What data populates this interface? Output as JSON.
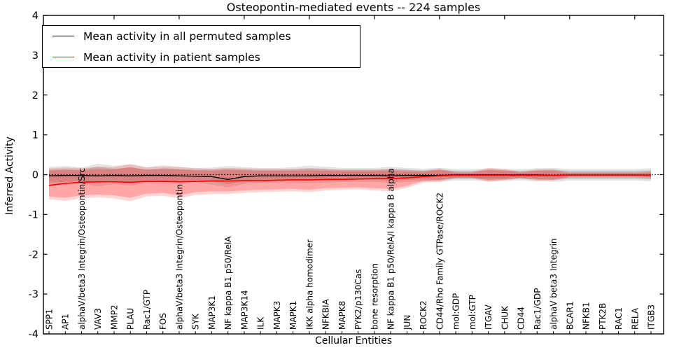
{
  "legend": {
    "entries": [
      {
        "label": "Mean activity in all permuted samples",
        "color": "#000000"
      },
      {
        "label": "Mean activity in patient samples",
        "color": "#ff0000"
      }
    ]
  },
  "chart_data": {
    "type": "line",
    "title": "Osteopontin-mediated events -- 224 samples",
    "xlabel": "Cellular Entities",
    "ylabel": "Inferred Activity",
    "ylim": [
      -4,
      4
    ],
    "yticks": [
      -4,
      -3,
      -2,
      -1,
      0,
      1,
      2,
      3,
      4
    ],
    "grid": false,
    "legend_position": "upper left",
    "zero_line": {
      "y": 0,
      "style": "dotted",
      "color": "#000000"
    },
    "categories": [
      "SPP1",
      "AP1",
      "alphaV/beta3 Integrin/Osteopontin/Src",
      "VAV3",
      "MMP2",
      "PLAU",
      "Rac1/GTP",
      "FOS",
      "alphaV/beta3 Integrin/Osteopontin",
      "SYK",
      "MAP3K1",
      "NF kappa B1 p50/RelA",
      "MAP3K14",
      "ILK",
      "MAPK3",
      "MAPK1",
      "IKK alpha homodimer",
      "NFKBIA",
      "MAPK8",
      "PYK2/p130Cas",
      "bone resorption",
      "NF kappa B1 p50/RelA/I kappa B alpha",
      "JUN",
      "ROCK2",
      "CD44/Rho Family GTPase/ROCK2",
      "mol:GDP",
      "mol:GTP",
      "ITGAV",
      "CHUK",
      "CD44",
      "Rac1/GDP",
      "alphaV beta3 Integrin",
      "BCAR1",
      "NFKB1",
      "PTK2B",
      "RAC1",
      "RELA",
      "ITGB3"
    ],
    "series": [
      {
        "name": "Mean activity in all permuted samples",
        "color": "#000000",
        "width": 1.4,
        "values": [
          -0.03,
          -0.02,
          -0.02,
          -0.03,
          -0.02,
          -0.03,
          -0.02,
          -0.02,
          -0.03,
          -0.04,
          -0.05,
          -0.12,
          -0.05,
          -0.03,
          -0.03,
          -0.03,
          -0.03,
          -0.02,
          -0.02,
          -0.02,
          -0.02,
          -0.03,
          -0.02,
          -0.02,
          -0.02,
          -0.01,
          -0.01,
          -0.01,
          -0.01,
          -0.01,
          -0.01,
          -0.02,
          -0.01,
          -0.01,
          -0.01,
          -0.01,
          -0.01,
          -0.01
        ]
      },
      {
        "name": "Mean activity in patient samples",
        "color": "#ff0000",
        "width": 1.6,
        "values": [
          -0.27,
          -0.22,
          -0.19,
          -0.18,
          -0.18,
          -0.19,
          -0.17,
          -0.17,
          -0.18,
          -0.17,
          -0.16,
          -0.16,
          -0.15,
          -0.15,
          -0.14,
          -0.13,
          -0.13,
          -0.12,
          -0.12,
          -0.11,
          -0.1,
          -0.1,
          -0.08,
          -0.05,
          -0.03,
          -0.02,
          -0.02,
          -0.02,
          -0.02,
          -0.02,
          -0.02,
          -0.02,
          -0.01,
          -0.01,
          -0.01,
          -0.01,
          -0.01,
          -0.01
        ]
      }
    ],
    "bands": [
      {
        "name": "permuted-outer",
        "color": "#000000",
        "opacity": 0.1,
        "upper": [
          0.2,
          0.22,
          0.18,
          0.28,
          0.22,
          0.27,
          0.19,
          0.24,
          0.2,
          0.17,
          0.18,
          0.22,
          0.19,
          0.17,
          0.17,
          0.19,
          0.23,
          0.2,
          0.17,
          0.17,
          0.17,
          0.2,
          0.17,
          0.15,
          0.17,
          0.14,
          0.14,
          0.16,
          0.14,
          0.14,
          0.16,
          0.17,
          0.14,
          0.14,
          0.14,
          0.14,
          0.14,
          0.16
        ],
        "lower": [
          -0.3,
          -0.26,
          -0.23,
          -0.3,
          -0.23,
          -0.28,
          -0.21,
          -0.23,
          -0.23,
          -0.2,
          -0.25,
          -0.32,
          -0.23,
          -0.2,
          -0.2,
          -0.2,
          -0.21,
          -0.2,
          -0.18,
          -0.18,
          -0.18,
          -0.21,
          -0.18,
          -0.17,
          -0.18,
          -0.15,
          -0.15,
          -0.17,
          -0.15,
          -0.15,
          -0.17,
          -0.18,
          -0.15,
          -0.15,
          -0.15,
          -0.15,
          -0.15,
          -0.17
        ]
      },
      {
        "name": "permuted-inner",
        "color": "#000000",
        "opacity": 0.13,
        "upper": [
          0.13,
          0.14,
          0.12,
          0.2,
          0.15,
          0.18,
          0.13,
          0.16,
          0.14,
          0.12,
          0.13,
          0.15,
          0.13,
          0.12,
          0.12,
          0.13,
          0.16,
          0.14,
          0.12,
          0.12,
          0.12,
          0.14,
          0.12,
          0.11,
          0.12,
          0.1,
          0.1,
          0.11,
          0.1,
          0.1,
          0.11,
          0.12,
          0.1,
          0.1,
          0.1,
          0.1,
          0.1,
          0.11
        ],
        "lower": [
          -0.2,
          -0.18,
          -0.16,
          -0.22,
          -0.16,
          -0.2,
          -0.15,
          -0.16,
          -0.16,
          -0.14,
          -0.18,
          -0.24,
          -0.16,
          -0.14,
          -0.14,
          -0.14,
          -0.15,
          -0.14,
          -0.13,
          -0.13,
          -0.13,
          -0.15,
          -0.13,
          -0.12,
          -0.13,
          -0.11,
          -0.11,
          -0.12,
          -0.11,
          -0.11,
          -0.12,
          -0.13,
          -0.11,
          -0.11,
          -0.11,
          -0.11,
          -0.11,
          -0.12
        ]
      },
      {
        "name": "patient-outer",
        "color": "#ff0000",
        "opacity": 0.16,
        "upper": [
          0.16,
          0.18,
          0.16,
          0.2,
          0.19,
          0.26,
          0.18,
          0.2,
          0.19,
          0.16,
          0.15,
          0.17,
          0.16,
          0.15,
          0.15,
          0.15,
          0.16,
          0.15,
          0.13,
          0.13,
          0.13,
          0.15,
          0.12,
          0.1,
          0.16,
          0.07,
          0.07,
          0.17,
          0.15,
          0.07,
          0.14,
          0.14,
          0.06,
          0.06,
          0.06,
          0.06,
          0.06,
          0.09
        ],
        "lower": [
          -0.62,
          -0.66,
          -0.6,
          -0.57,
          -0.6,
          -0.67,
          -0.55,
          -0.53,
          -0.6,
          -0.51,
          -0.49,
          -0.49,
          -0.46,
          -0.44,
          -0.43,
          -0.42,
          -0.44,
          -0.4,
          -0.38,
          -0.37,
          -0.4,
          -0.42,
          -0.33,
          -0.2,
          -0.18,
          -0.09,
          -0.09,
          -0.18,
          -0.15,
          -0.09,
          -0.15,
          -0.15,
          -0.07,
          -0.07,
          -0.07,
          -0.07,
          -0.07,
          -0.1
        ]
      },
      {
        "name": "patient-inner",
        "color": "#ff0000",
        "opacity": 0.22,
        "upper": [
          0.1,
          0.12,
          0.11,
          0.14,
          0.13,
          0.19,
          0.12,
          0.14,
          0.13,
          0.11,
          0.1,
          0.12,
          0.11,
          0.1,
          0.1,
          0.1,
          0.11,
          0.1,
          0.09,
          0.09,
          0.09,
          0.1,
          0.08,
          0.07,
          0.12,
          0.05,
          0.05,
          0.13,
          0.11,
          0.05,
          0.1,
          0.1,
          0.04,
          0.04,
          0.04,
          0.04,
          0.04,
          0.06
        ],
        "lower": [
          -0.55,
          -0.58,
          -0.52,
          -0.5,
          -0.52,
          -0.58,
          -0.48,
          -0.46,
          -0.52,
          -0.44,
          -0.42,
          -0.42,
          -0.4,
          -0.38,
          -0.37,
          -0.36,
          -0.38,
          -0.34,
          -0.33,
          -0.32,
          -0.34,
          -0.36,
          -0.28,
          -0.16,
          -0.14,
          -0.07,
          -0.07,
          -0.14,
          -0.12,
          -0.07,
          -0.12,
          -0.12,
          -0.05,
          -0.05,
          -0.05,
          -0.05,
          -0.05,
          -0.07
        ]
      }
    ]
  }
}
